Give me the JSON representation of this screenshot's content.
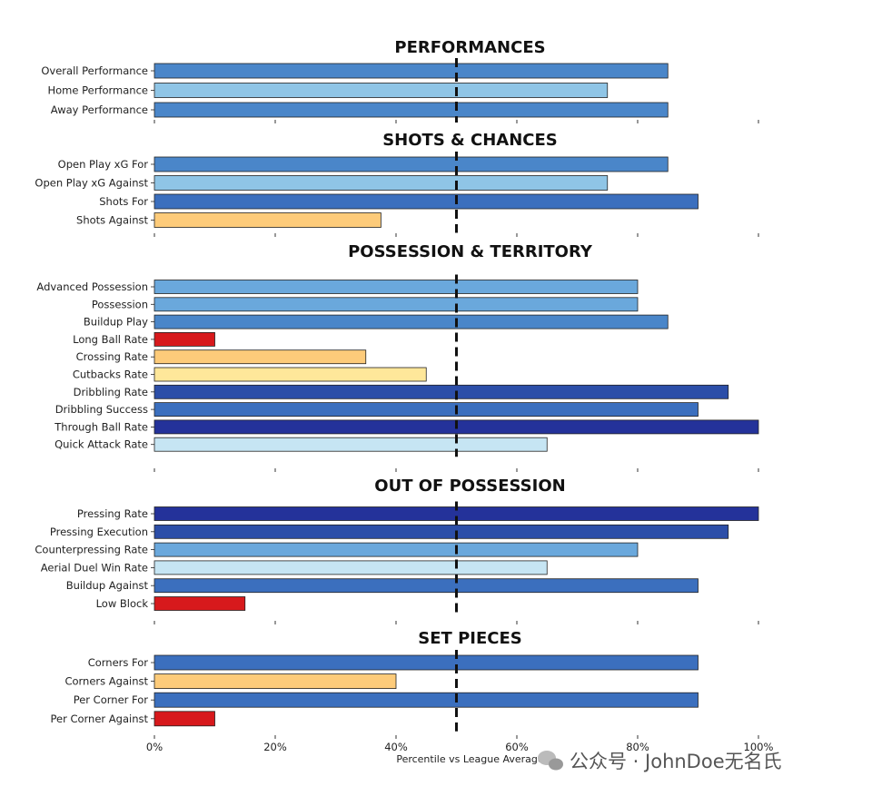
{
  "chart_data": {
    "type": "bar",
    "orientation": "horizontal",
    "xlabel": "Percentile vs League Average",
    "xlim": [
      0,
      100
    ],
    "x_ticks": [
      "0%",
      "20%",
      "40%",
      "60%",
      "80%",
      "100%"
    ],
    "x_tick_values": [
      0,
      20,
      40,
      60,
      80,
      100
    ],
    "reference_line": 50,
    "color_scale": {
      "0-15": "#d7191c",
      "15-25": "#e34a33",
      "25-40": "#fdcb7a",
      "40-50": "#fee79a",
      "50-70": "#c6e5f3",
      "70-78": "#8fc5e6",
      "78-83": "#6aa8dc",
      "83-88": "#4a86c9",
      "88-93": "#3b6fbe",
      "93-98": "#2c4ea8",
      "98-100": "#24329a"
    },
    "panels": [
      {
        "title": "PERFORMANCES",
        "categories": [
          "Overall Performance",
          "Home Performance",
          "Away Performance"
        ],
        "values": [
          85,
          75,
          85
        ]
      },
      {
        "title": "SHOTS & CHANCES",
        "categories": [
          "Open Play xG For",
          "Open Play xG Against",
          "Shots For",
          "Shots Against"
        ],
        "values": [
          85,
          75,
          90,
          37.5
        ]
      },
      {
        "title": "POSSESSION & TERRITORY",
        "categories": [
          "Advanced Possession",
          "Possession",
          "Buildup Play",
          "Long Ball Rate",
          "Crossing Rate",
          "Cutbacks Rate",
          "Dribbling Rate",
          "Dribbling Success",
          "Through Ball Rate",
          "Quick Attack Rate"
        ],
        "values": [
          80,
          80,
          85,
          10,
          35,
          45,
          95,
          90,
          100,
          65
        ]
      },
      {
        "title": "OUT OF POSSESSION",
        "categories": [
          "Pressing Rate",
          "Pressing Execution",
          "Counterpressing Rate",
          "Aerial Duel Win Rate",
          "Buildup Against",
          "Low Block"
        ],
        "values": [
          100,
          95,
          80,
          65,
          90,
          15
        ]
      },
      {
        "title": "SET PIECES",
        "categories": [
          "Corners For",
          "Corners Against",
          "Per Corner For",
          "Per Corner Against"
        ],
        "values": [
          90,
          40,
          90,
          10
        ]
      }
    ]
  },
  "watermark": {
    "text": "公众号 · JohnDoe无名氏",
    "icon": "wechat-icon"
  }
}
